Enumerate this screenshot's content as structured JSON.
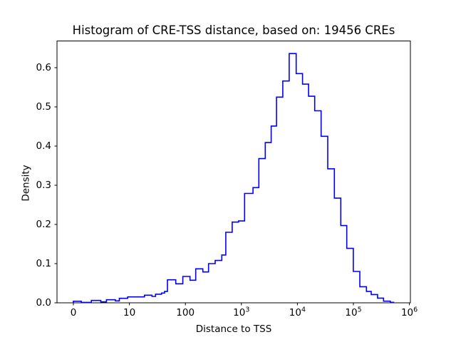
{
  "title": "Histogram of CRE-TSS distance, based on: 19456 CREs",
  "axes": {
    "xlabel": "Distance to TSS",
    "ylabel": "Density",
    "x_scale": "symlog (linear below 10, log above)",
    "x_ticks": [
      {
        "value": 0,
        "label": "0"
      },
      {
        "value": 10,
        "label": "10"
      },
      {
        "value": 100,
        "label": "100"
      },
      {
        "value": 1000,
        "label": "10",
        "exp": "3"
      },
      {
        "value": 10000,
        "label": "10",
        "exp": "4"
      },
      {
        "value": 100000,
        "label": "10",
        "exp": "5"
      },
      {
        "value": 1000000,
        "label": "10",
        "exp": "6"
      }
    ],
    "y_ticks": [
      {
        "value": 0.0,
        "label": "0.0"
      },
      {
        "value": 0.1,
        "label": "0.1"
      },
      {
        "value": 0.2,
        "label": "0.2"
      },
      {
        "value": 0.3,
        "label": "0.3"
      },
      {
        "value": 0.4,
        "label": "0.4"
      },
      {
        "value": 0.5,
        "label": "0.5"
      },
      {
        "value": 0.6,
        "label": "0.6"
      }
    ]
  },
  "chart_data": {
    "type": "histogram-step",
    "title": "Histogram of CRE-TSS distance, based on: 19456 CREs",
    "xlabel": "Distance to TSS",
    "ylabel": "Density",
    "n_samples": 19456,
    "line_color": "#0000ff",
    "grid": false,
    "legend": false,
    "xlim": [
      -3,
      1050000
    ],
    "ylim": [
      0,
      0.668
    ],
    "bin_edges": [
      0,
      1.4,
      3.2,
      4.9,
      5.9,
      7.5,
      8.2,
      9.7,
      18.6,
      25.3,
      29.3,
      37.5,
      42.5,
      47.8,
      67.4,
      90,
      121,
      153,
      205,
      259,
      340,
      447,
      527,
      686,
      892,
      1140,
      1610,
      2050,
      2670,
      3400,
      4240,
      5480,
      7140,
      9520,
      12340,
      15860,
      20350,
      26500,
      34800,
      45700,
      59500,
      76200,
      99600,
      130000,
      171000,
      208000,
      270000,
      345000,
      456000,
      522000
    ],
    "densities": [
      0.004,
      0.001,
      0.006,
      0.0024,
      0.0078,
      0.005,
      0.0115,
      0.0151,
      0.0195,
      0.0164,
      0.022,
      0.025,
      0.029,
      0.0587,
      0.0485,
      0.0673,
      0.0576,
      0.0867,
      0.0788,
      0.1,
      0.108,
      0.122,
      0.18,
      0.206,
      0.209,
      0.279,
      0.294,
      0.368,
      0.409,
      0.451,
      0.525,
      0.566,
      0.636,
      0.585,
      0.558,
      0.527,
      0.49,
      0.425,
      0.342,
      0.267,
      0.197,
      0.139,
      0.08,
      0.041,
      0.029,
      0.021,
      0.012,
      0.0042,
      0.0012
    ]
  }
}
